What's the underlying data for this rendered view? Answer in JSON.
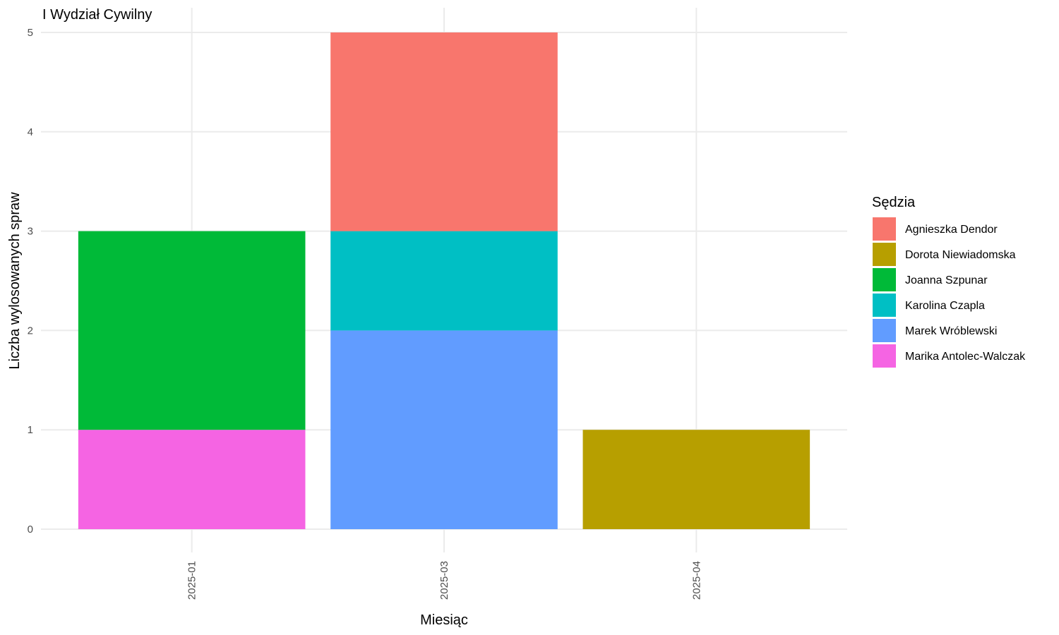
{
  "chart_data": {
    "type": "bar",
    "stacked": true,
    "title": "I Wydział Cywilny",
    "xlabel": "Miesiąc",
    "ylabel": "Liczba wylosowanych spraw",
    "ylim": [
      0,
      5
    ],
    "yticks": [
      0,
      1,
      2,
      3,
      4,
      5
    ],
    "grid": true,
    "legend": {
      "title": "Sędzia",
      "position": "right"
    },
    "categories": [
      "2025-01",
      "2025-03",
      "2025-04"
    ],
    "series": [
      {
        "name": "Agnieszka Dendor",
        "color": "#F8766D",
        "values": [
          0,
          2,
          0
        ]
      },
      {
        "name": "Dorota Niewiadomska",
        "color": "#B79F00",
        "values": [
          0,
          0,
          1
        ]
      },
      {
        "name": "Joanna Szpunar",
        "color": "#00BA38",
        "values": [
          2,
          0,
          0
        ]
      },
      {
        "name": "Karolina Czapla",
        "color": "#00BFC4",
        "values": [
          0,
          1,
          0
        ]
      },
      {
        "name": "Marek Wróblewski",
        "color": "#619CFF",
        "values": [
          0,
          2,
          0
        ]
      },
      {
        "name": "Marika Antolec-Walczak",
        "color": "#F564E3",
        "values": [
          1,
          0,
          0
        ]
      }
    ]
  }
}
